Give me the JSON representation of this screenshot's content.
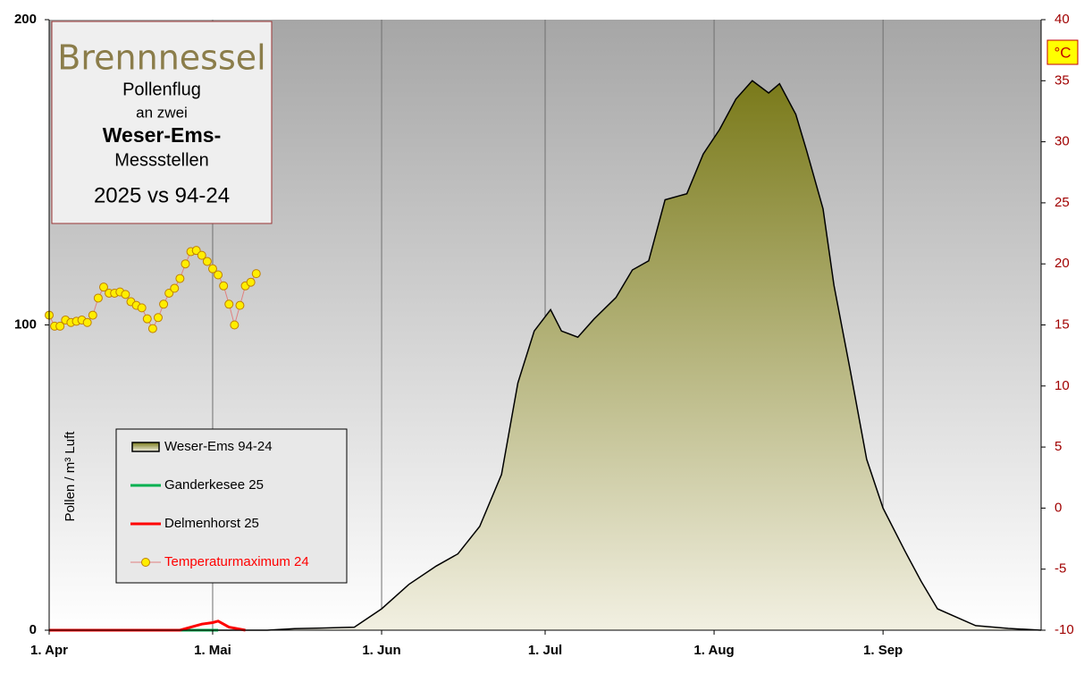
{
  "chart_data": {
    "type": "area",
    "title": "Brennnessel",
    "subtitle": [
      "Pollenflug",
      "an zwei",
      "Weser-Ems-",
      "Messstellen"
    ],
    "period": "2025 vs 94-24",
    "ylabel": "Pollen / m³ Luft",
    "y2label": "°C",
    "xlim": [
      0,
      182
    ],
    "xticks": [
      {
        "value": 0,
        "label": "1. Apr"
      },
      {
        "value": 30,
        "label": "1. Mai"
      },
      {
        "value": 61,
        "label": "1. Jun"
      },
      {
        "value": 91,
        "label": "1. Jul"
      },
      {
        "value": 122,
        "label": "1. Aug"
      },
      {
        "value": 153,
        "label": "1. Sep"
      }
    ],
    "ylim": [
      0,
      200
    ],
    "yticks": [
      0,
      100,
      200
    ],
    "y2lim": [
      -10,
      40
    ],
    "y2ticks": [
      -10,
      -5,
      0,
      5,
      10,
      15,
      20,
      25,
      30,
      35,
      40
    ],
    "grid": "x",
    "series": [
      {
        "name": "Weser-Ems 94-24",
        "type": "area",
        "color": "#7a7a1a",
        "fill_bottom": "#f2f0e2",
        "x": [
          0,
          40,
          45,
          50,
          56,
          61,
          66,
          71,
          75,
          79,
          83,
          86,
          89,
          92,
          94,
          97,
          100,
          104,
          107,
          110,
          113,
          117,
          120,
          123,
          126,
          129,
          132,
          134,
          137,
          139,
          142,
          144,
          147,
          150,
          153,
          157,
          160,
          163,
          170,
          176,
          182
        ],
        "values": [
          0,
          0,
          0.5,
          0.7,
          1,
          7,
          15,
          21,
          25,
          34,
          51,
          81,
          98,
          105,
          98,
          96,
          102,
          109,
          118,
          121,
          141,
          143,
          156,
          164,
          174,
          180,
          176,
          179,
          169,
          157,
          138,
          113,
          85,
          56,
          40,
          26,
          16,
          7,
          1.5,
          0.6,
          0
        ]
      },
      {
        "name": "Ganderkesee 25",
        "type": "line",
        "color": "#00b050",
        "x": [
          24,
          26,
          28,
          30,
          31
        ],
        "values": [
          0,
          0,
          0,
          0,
          0
        ]
      },
      {
        "name": "Delmenhorst 25",
        "type": "line",
        "color": "#ff0000",
        "x": [
          0,
          10,
          20,
          24,
          26,
          28,
          30,
          31,
          33,
          36
        ],
        "values": [
          0,
          0,
          0,
          0,
          1,
          2,
          2.5,
          3,
          1,
          0
        ]
      },
      {
        "name": "Temperaturmaximum 24",
        "type": "line",
        "axis": "y2",
        "color": "#e08080",
        "label_color": "#ff0000",
        "marker_fill": "#ffee00",
        "marker_edge": "#c08000",
        "x": [
          0,
          1,
          2,
          3,
          4,
          5,
          6,
          7,
          8,
          9,
          10,
          11,
          12,
          13,
          14,
          15,
          16,
          17,
          18,
          19,
          20,
          21,
          22,
          23,
          24,
          25,
          26,
          27,
          28,
          29,
          30,
          31,
          32,
          33,
          34,
          35,
          36,
          37,
          38
        ],
        "values": [
          15.8,
          14.9,
          14.9,
          15.4,
          15.2,
          15.3,
          15.4,
          15.2,
          15.8,
          17.2,
          18.1,
          17.6,
          17.6,
          17.7,
          17.5,
          16.9,
          16.6,
          16.4,
          15.5,
          14.7,
          15.6,
          16.7,
          17.6,
          18.0,
          18.8,
          20.0,
          21.0,
          21.1,
          20.7,
          20.2,
          19.6,
          19.1,
          18.2,
          16.7,
          15.0,
          16.6,
          18.2,
          18.5,
          19.2
        ]
      }
    ]
  }
}
